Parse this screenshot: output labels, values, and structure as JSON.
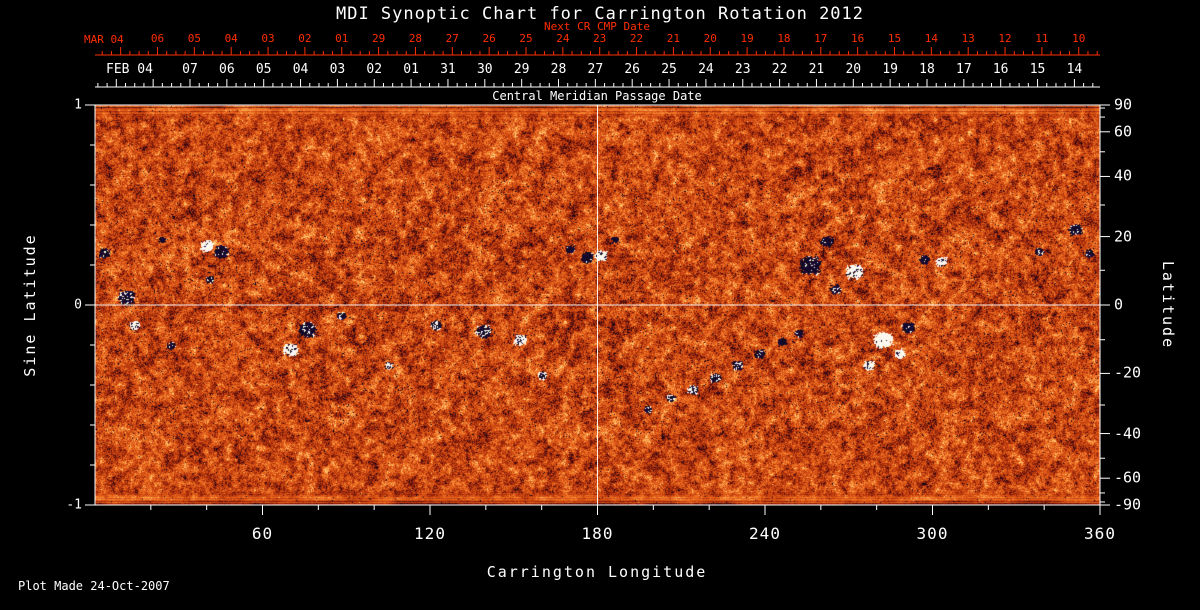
{
  "title": "MDI Synoptic Chart for Carrington Rotation 2012",
  "footer": {
    "plot_made": "Plot Made 24-Oct-2007"
  },
  "colors": {
    "background": "#000000",
    "foreground": "#ffffff",
    "next_cr_axis": "#ff2e00",
    "crosshair": "#ffffff"
  },
  "chart_data": {
    "type": "heatmap",
    "subtype": "solar-synoptic-magnetogram",
    "title": "MDI Synoptic Chart for Carrington Rotation 2012",
    "xlabel": "Carrington Longitude",
    "ylabel_left": "Sine Latitude",
    "ylabel_right": "Latitude",
    "x_range": [
      0,
      360
    ],
    "x_major_ticks": [
      60,
      120,
      180,
      240,
      300,
      360
    ],
    "x_minor_tick_step": 20,
    "y_sine_range": [
      -1,
      1
    ],
    "y_left_major_ticks": [
      1,
      0,
      -1
    ],
    "y_left_minor_tick_step": 0.2,
    "y_right_major_ticks_deg": [
      90,
      60,
      40,
      20,
      0,
      -20,
      -40,
      -60,
      -90
    ],
    "y_right_minor_ticks_deg": [
      80,
      70,
      50,
      30,
      10,
      -10,
      -30,
      -50,
      -70,
      -80
    ],
    "grid_crosshair": {
      "longitude": 180,
      "sine_latitude": 0
    },
    "top_axes": {
      "next_cr": {
        "label": "Next CR CMP Date",
        "month_year_label": "MAR 04",
        "day_labels": [
          "06",
          "05",
          "04",
          "03",
          "02",
          "01",
          "29",
          "28",
          "27",
          "26",
          "25",
          "24",
          "23",
          "22",
          "21",
          "20",
          "19",
          "18",
          "17",
          "16",
          "15",
          "14",
          "13",
          "12",
          "11",
          "10"
        ]
      },
      "cmp": {
        "label": "Central Meridian Passage Date",
        "month_year_label": "FEB 04",
        "day_labels": [
          "07",
          "06",
          "05",
          "04",
          "03",
          "02",
          "01",
          "31",
          "30",
          "29",
          "28",
          "27",
          "26",
          "25",
          "24",
          "23",
          "22",
          "21",
          "20",
          "19",
          "18",
          "17",
          "16",
          "15",
          "14"
        ]
      }
    },
    "texture": {
      "description": "Full-disk line-of-sight magnetic field synoptic map: granular orange-red noise over the whole band, fine horizontal streaks near the polar (top/bottom) edges, salt-and-pepper dark specks in the activity belts, white crosshair at longitude 180 and sine latitude 0.",
      "polarity_colors": {
        "n": "dark navy-black (negative field)",
        "p": "white (positive field)"
      }
    },
    "palette_stops": [
      [
        0.0,
        [
          12,
          4,
          28
        ]
      ],
      [
        0.1,
        [
          70,
          10,
          14
        ]
      ],
      [
        0.28,
        [
          146,
          32,
          10
        ]
      ],
      [
        0.5,
        [
          205,
          70,
          16
        ]
      ],
      [
        0.68,
        [
          232,
          100,
          28
        ]
      ],
      [
        0.84,
        [
          248,
          138,
          52
        ]
      ],
      [
        1.0,
        [
          255,
          208,
          124
        ]
      ]
    ],
    "active_regions": [
      {
        "lon": 3,
        "sine_lat": 0.26,
        "r": 5,
        "pol": "n",
        "mix": 0.1
      },
      {
        "lon": 11,
        "sine_lat": 0.04,
        "r": 8,
        "pol": "n",
        "mix": 0.2
      },
      {
        "lon": 14,
        "sine_lat": -0.1,
        "r": 5,
        "pol": "p",
        "mix": 0.3
      },
      {
        "lon": 24,
        "sine_lat": 0.33,
        "r": 3,
        "pol": "n",
        "mix": 0
      },
      {
        "lon": 27,
        "sine_lat": -0.2,
        "r": 4,
        "pol": "n",
        "mix": 0.2
      },
      {
        "lon": 40,
        "sine_lat": 0.3,
        "r": 6,
        "pol": "p",
        "mix": 0.05
      },
      {
        "lon": 45,
        "sine_lat": 0.27,
        "r": 7,
        "pol": "n",
        "mix": 0.08
      },
      {
        "lon": 41,
        "sine_lat": 0.13,
        "r": 4,
        "pol": "n",
        "mix": 0.2
      },
      {
        "lon": 70,
        "sine_lat": -0.22,
        "r": 7,
        "pol": "p",
        "mix": 0.12
      },
      {
        "lon": 76,
        "sine_lat": -0.12,
        "r": 8,
        "pol": "n",
        "mix": 0.15
      },
      {
        "lon": 88,
        "sine_lat": -0.05,
        "r": 4,
        "pol": "n",
        "mix": 0.2
      },
      {
        "lon": 105,
        "sine_lat": -0.3,
        "r": 4,
        "pol": "p",
        "mix": 0.4
      },
      {
        "lon": 122,
        "sine_lat": -0.1,
        "r": 5,
        "pol": "n",
        "mix": 0.3
      },
      {
        "lon": 139,
        "sine_lat": -0.13,
        "r": 7,
        "pol": "n",
        "mix": 0.25
      },
      {
        "lon": 152,
        "sine_lat": -0.17,
        "r": 6,
        "pol": "p",
        "mix": 0.25
      },
      {
        "lon": 160,
        "sine_lat": -0.35,
        "r": 4,
        "pol": "p",
        "mix": 0.45
      },
      {
        "lon": 170,
        "sine_lat": 0.28,
        "r": 4,
        "pol": "n",
        "mix": 0.1
      },
      {
        "lon": 176,
        "sine_lat": 0.24,
        "r": 6,
        "pol": "n",
        "mix": 0.05
      },
      {
        "lon": 181,
        "sine_lat": 0.25,
        "r": 6,
        "pol": "p",
        "mix": 0.15
      },
      {
        "lon": 186,
        "sine_lat": 0.33,
        "r": 3,
        "pol": "n",
        "mix": 0
      },
      {
        "lon": 198,
        "sine_lat": -0.52,
        "r": 4,
        "pol": "n",
        "mix": 0.3
      },
      {
        "lon": 206,
        "sine_lat": -0.46,
        "r": 4,
        "pol": "n",
        "mix": 0.35
      },
      {
        "lon": 214,
        "sine_lat": -0.42,
        "r": 5,
        "pol": "p",
        "mix": 0.45
      },
      {
        "lon": 222,
        "sine_lat": -0.36,
        "r": 5,
        "pol": "n",
        "mix": 0.3
      },
      {
        "lon": 230,
        "sine_lat": -0.3,
        "r": 5,
        "pol": "n",
        "mix": 0.3
      },
      {
        "lon": 238,
        "sine_lat": -0.24,
        "r": 5,
        "pol": "n",
        "mix": 0.2
      },
      {
        "lon": 246,
        "sine_lat": -0.18,
        "r": 4,
        "pol": "n",
        "mix": 0.2
      },
      {
        "lon": 252,
        "sine_lat": -0.14,
        "r": 4,
        "pol": "n",
        "mix": 0.1
      },
      {
        "lon": 256,
        "sine_lat": 0.2,
        "r": 10,
        "pol": "n",
        "mix": 0.1
      },
      {
        "lon": 262,
        "sine_lat": 0.32,
        "r": 6,
        "pol": "n",
        "mix": 0.05
      },
      {
        "lon": 265,
        "sine_lat": 0.08,
        "r": 5,
        "pol": "n",
        "mix": 0.2
      },
      {
        "lon": 272,
        "sine_lat": 0.17,
        "r": 8,
        "pol": "p",
        "mix": 0.15
      },
      {
        "lon": 277,
        "sine_lat": -0.3,
        "r": 5,
        "pol": "p",
        "mix": 0.2
      },
      {
        "lon": 282,
        "sine_lat": -0.17,
        "r": 9,
        "pol": "p",
        "mix": 0.06
      },
      {
        "lon": 288,
        "sine_lat": -0.24,
        "r": 5,
        "pol": "p",
        "mix": 0.1
      },
      {
        "lon": 291,
        "sine_lat": -0.11,
        "r": 6,
        "pol": "n",
        "mix": 0.08
      },
      {
        "lon": 297,
        "sine_lat": 0.23,
        "r": 5,
        "pol": "n",
        "mix": 0.1
      },
      {
        "lon": 303,
        "sine_lat": 0.22,
        "r": 5,
        "pol": "p",
        "mix": 0.2
      },
      {
        "lon": 338,
        "sine_lat": 0.27,
        "r": 4,
        "pol": "n",
        "mix": 0.2
      },
      {
        "lon": 351,
        "sine_lat": 0.38,
        "r": 6,
        "pol": "n",
        "mix": 0.15
      },
      {
        "lon": 356,
        "sine_lat": 0.26,
        "r": 4,
        "pol": "n",
        "mix": 0.1
      }
    ]
  }
}
